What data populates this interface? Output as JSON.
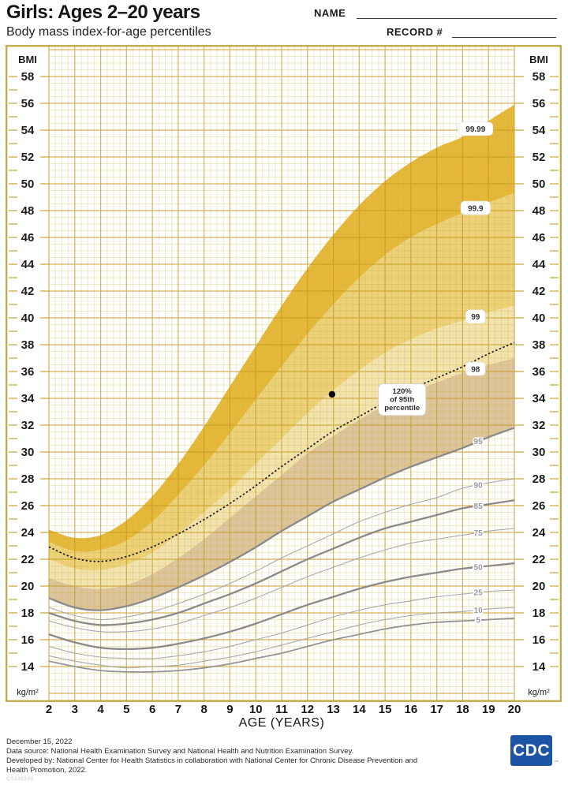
{
  "header": {
    "title": "Girls: Ages 2–20 years",
    "subtitle": "Body mass index-for-age percentiles",
    "name_label": "NAME",
    "record_label": "RECORD #"
  },
  "chart_data": {
    "type": "line",
    "title": "Body mass index-for-age percentiles, girls ages 2 to 20 years",
    "xlabel": "AGE (YEARS)",
    "ylabel_top": "BMI",
    "ylabel_bottom": "kg/m²",
    "x": [
      2,
      3,
      4,
      5,
      6,
      7,
      8,
      9,
      10,
      11,
      12,
      13,
      14,
      15,
      16,
      17,
      18,
      19,
      20
    ],
    "xlim": [
      2,
      20
    ],
    "yticks": [
      14,
      16,
      18,
      20,
      22,
      24,
      26,
      28,
      30,
      32,
      34,
      36,
      38,
      40,
      42,
      44,
      46,
      48,
      50,
      52,
      54,
      56,
      58
    ],
    "grid": "on",
    "series": [
      {
        "name": "5",
        "weight": "medium",
        "drawn": true,
        "values": [
          14.4,
          14.0,
          13.7,
          13.6,
          13.6,
          13.7,
          13.9,
          14.2,
          14.6,
          15.0,
          15.5,
          16.0,
          16.4,
          16.8,
          17.1,
          17.3,
          17.4,
          17.5,
          17.6
        ]
      },
      {
        "name": "10",
        "weight": "light",
        "drawn": true,
        "values": [
          14.8,
          14.4,
          14.1,
          13.9,
          14.0,
          14.1,
          14.4,
          14.7,
          15.1,
          15.6,
          16.1,
          16.6,
          17.1,
          17.5,
          17.8,
          18.0,
          18.1,
          18.3,
          18.4
        ]
      },
      {
        "name": "25",
        "weight": "light",
        "drawn": true,
        "values": [
          15.5,
          15.0,
          14.7,
          14.6,
          14.6,
          14.8,
          15.1,
          15.5,
          16.0,
          16.5,
          17.1,
          17.7,
          18.2,
          18.6,
          18.9,
          19.2,
          19.4,
          19.6,
          19.7
        ]
      },
      {
        "name": "50",
        "weight": "bold",
        "drawn": true,
        "values": [
          16.4,
          15.8,
          15.4,
          15.3,
          15.4,
          15.7,
          16.1,
          16.6,
          17.2,
          17.9,
          18.6,
          19.2,
          19.8,
          20.3,
          20.7,
          21.0,
          21.3,
          21.5,
          21.7
        ]
      },
      {
        "name": "75",
        "weight": "light",
        "drawn": true,
        "values": [
          17.4,
          16.9,
          16.6,
          16.6,
          16.8,
          17.2,
          17.8,
          18.4,
          19.1,
          19.9,
          20.7,
          21.4,
          22.1,
          22.7,
          23.2,
          23.5,
          23.8,
          24.1,
          24.3
        ]
      },
      {
        "name": "85",
        "weight": "bold",
        "drawn": true,
        "values": [
          18.0,
          17.4,
          17.1,
          17.2,
          17.5,
          18.0,
          18.7,
          19.4,
          20.2,
          21.1,
          22.0,
          22.8,
          23.6,
          24.3,
          24.8,
          25.3,
          25.8,
          26.1,
          26.4
        ]
      },
      {
        "name": "90",
        "weight": "light",
        "drawn": true,
        "values": [
          18.4,
          17.8,
          17.5,
          17.7,
          18.1,
          18.7,
          19.4,
          20.2,
          21.1,
          22.1,
          23.0,
          23.9,
          24.8,
          25.5,
          26.1,
          26.6,
          27.3,
          27.7,
          28.0
        ]
      },
      {
        "name": "95",
        "weight": "bold",
        "drawn": true,
        "values": [
          19.1,
          18.4,
          18.2,
          18.5,
          19.1,
          19.9,
          20.8,
          21.8,
          22.9,
          24.1,
          25.2,
          26.3,
          27.2,
          28.1,
          28.9,
          29.6,
          30.3,
          31.1,
          31.8
        ]
      },
      {
        "name": "98",
        "weight": "none",
        "drawn": false,
        "values": [
          20.6,
          20.0,
          19.8,
          20.1,
          20.9,
          22.1,
          23.5,
          25.1,
          26.7,
          28.3,
          29.9,
          31.2,
          32.4,
          33.5,
          34.4,
          35.2,
          35.9,
          36.5,
          37.0
        ]
      },
      {
        "name": "99",
        "weight": "none",
        "drawn": false,
        "values": [
          22.0,
          21.3,
          21.2,
          21.6,
          22.5,
          23.9,
          25.5,
          27.2,
          29.1,
          31.0,
          32.9,
          34.6,
          36.1,
          37.4,
          38.4,
          39.2,
          39.8,
          40.4,
          40.9
        ]
      },
      {
        "name": "99.9",
        "weight": "none",
        "drawn": false,
        "values": [
          23.3,
          22.6,
          22.7,
          23.4,
          24.8,
          26.8,
          29.0,
          31.4,
          33.9,
          36.4,
          38.8,
          41.0,
          43.0,
          44.7,
          46.0,
          47.0,
          47.8,
          48.6,
          49.3
        ]
      },
      {
        "name": "99.99",
        "weight": "none",
        "drawn": false,
        "values": [
          24.2,
          23.6,
          23.8,
          24.9,
          26.7,
          29.1,
          31.9,
          34.9,
          37.9,
          40.9,
          43.7,
          46.2,
          48.4,
          50.2,
          51.6,
          52.7,
          53.5,
          54.7,
          55.9
        ]
      }
    ],
    "bands": [
      {
        "lower": "95",
        "upper": "98",
        "color": "#dcc49c"
      },
      {
        "lower": "98",
        "upper": "99",
        "color": "#f2e3ae"
      },
      {
        "lower": "99",
        "upper": "99.9",
        "color": "#ecd178"
      },
      {
        "lower": "99.9",
        "upper": "99.99",
        "color": "#e5b83a"
      }
    ],
    "dotted_curve": {
      "definition": "120% of 95th percentile",
      "multiplier": 1.2,
      "base_series": "95"
    },
    "dotted_label": {
      "lines": [
        "120%",
        "of 95th",
        "percentile"
      ],
      "age": 15.66,
      "bmi": 33.9
    },
    "extended_labels": [
      {
        "text": "99.99",
        "series": "99.99",
        "age": 18.5
      },
      {
        "text": "99.9",
        "series": "99.9",
        "age": 18.5
      },
      {
        "text": "99",
        "series": "99",
        "age": 18.5
      },
      {
        "text": "98",
        "series": "98",
        "age": 18.5
      }
    ],
    "curve_labels": [
      {
        "text": "95",
        "series": "95",
        "age": 18.6
      },
      {
        "text": "90",
        "series": "90",
        "age": 18.6
      },
      {
        "text": "85",
        "series": "85",
        "age": 18.6
      },
      {
        "text": "75",
        "series": "75",
        "age": 18.6
      },
      {
        "text": "50",
        "series": "50",
        "age": 18.6
      },
      {
        "text": "25",
        "series": "25",
        "age": 18.6
      },
      {
        "text": "10",
        "series": "10",
        "age": 18.6
      },
      {
        "text": "5",
        "series": "5",
        "age": 18.6
      }
    ],
    "point": {
      "age": 12.95,
      "bmi": 34.3
    }
  },
  "colors": {
    "band_95_98": "#dcc49c",
    "band_98_99": "#f2e3ae",
    "band_99_999": "#ecd178",
    "band_999_9999": "#e5b83a",
    "grid_minor": "rgba(205,174,64,0.30)",
    "grid_major": "rgba(193,153,30,0.72)",
    "border": "#c2a73e",
    "curve_bold": "#8a8a8a",
    "curve_medium": "#939393",
    "curve_light": "#a9a9a9",
    "dotted": "#1a1a1a",
    "point": "#0d0d0d",
    "cdc_blue": "#1d54a5"
  },
  "footer": {
    "lines": [
      "December 15, 2022",
      "Data source: National Health Examination Survey and National Health and Nutrition Examination Survey.",
      "Developed by: National Center for Health Statistics in collaboration with National Center for Chronic Disease Prevention and",
      "Health Promotion, 2022."
    ],
    "code": "CS330334",
    "logo_text": "CDC",
    "logo_tm": "™"
  }
}
